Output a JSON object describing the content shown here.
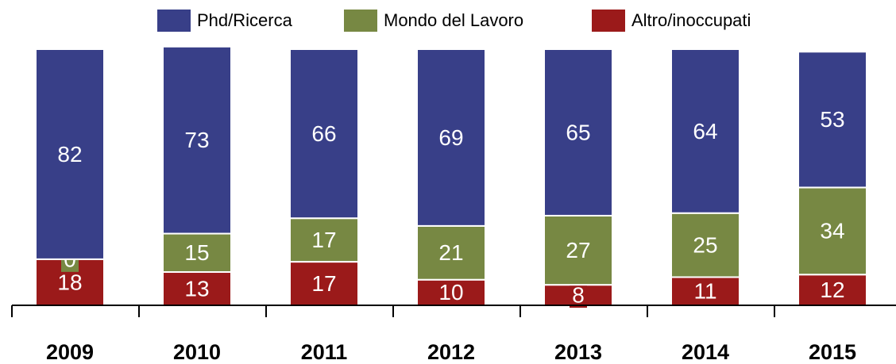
{
  "chart_data": {
    "type": "stacked_bar",
    "categories": [
      "2009",
      "2010",
      "2011",
      "2012",
      "2013",
      "2014",
      "2015"
    ],
    "series": [
      {
        "name": "Phd/Ricerca",
        "color": "#383f88",
        "values": [
          82,
          73,
          66,
          69,
          65,
          64,
          53
        ]
      },
      {
        "name": "Mondo del Lavoro",
        "color": "#778843",
        "values": [
          0,
          15,
          17,
          21,
          27,
          25,
          34
        ]
      },
      {
        "name": "Altro/inoccupati",
        "color": "#9b1a1a",
        "values": [
          18,
          13,
          17,
          10,
          8,
          11,
          12
        ]
      }
    ],
    "ylim": [
      0,
      100
    ]
  }
}
